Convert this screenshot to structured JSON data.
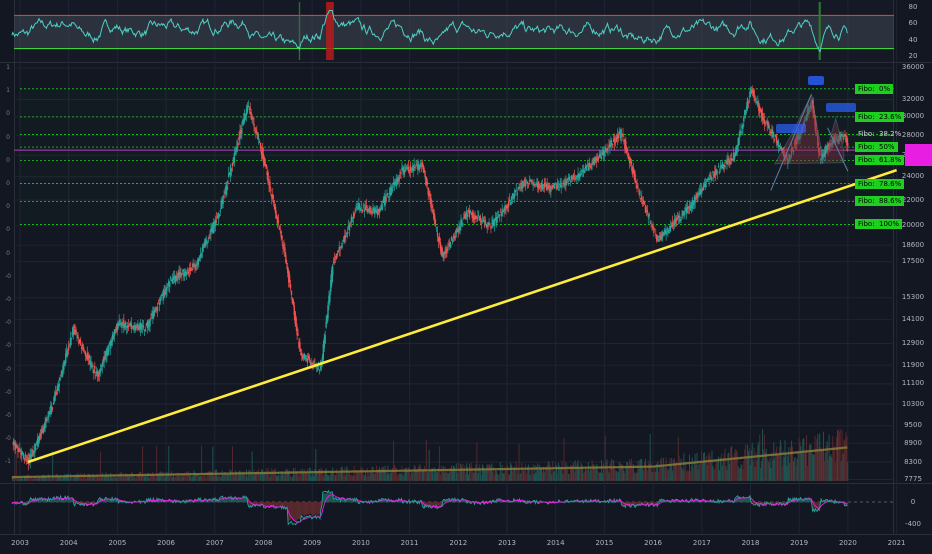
{
  "chart_data": {
    "type": "candlestick",
    "x_axis": {
      "ticks": [
        "2003",
        "2004",
        "2005",
        "2006",
        "2007",
        "2008",
        "2009",
        "2010",
        "2011",
        "2012",
        "2013",
        "2014",
        "2015",
        "2016",
        "2017",
        "2018",
        "2019",
        "2020",
        "2021"
      ]
    },
    "price_axis": {
      "scale": "log",
      "ticks": [
        "36000",
        "32000",
        "30000",
        "28000",
        "26000",
        "24000",
        "22000",
        "20000",
        "18600",
        "17500",
        "15300",
        "14100",
        "12900",
        "11900",
        "11100",
        "10300",
        "9500",
        "8900",
        "8300",
        "7775"
      ]
    },
    "rsi_axis": {
      "ticks": [
        "80",
        "60",
        "40",
        "20"
      ],
      "upper_band": 70,
      "lower_band": 30
    },
    "macd_axis": {
      "ticks": [
        "0",
        "-400"
      ]
    },
    "left_axis_labels": [
      "1",
      "1",
      "0",
      "0",
      "0",
      "0",
      "0",
      "0",
      "0",
      "-0",
      "-0",
      "-0",
      "-0",
      "-0",
      "-0",
      "-0",
      "-0",
      "-1"
    ],
    "price_path": [
      [
        "2002-11",
        8900
      ],
      [
        "2003-03",
        8300
      ],
      [
        "2003-09",
        10300
      ],
      [
        "2004-02",
        13600
      ],
      [
        "2004-08",
        11400
      ],
      [
        "2005-01",
        13900
      ],
      [
        "2005-08",
        13700
      ],
      [
        "2006-02",
        16300
      ],
      [
        "2006-08",
        17200
      ],
      [
        "2007-02",
        21000
      ],
      [
        "2007-09",
        31500
      ],
      [
        "2008-01",
        25500
      ],
      [
        "2008-06",
        18200
      ],
      [
        "2008-10",
        12400
      ],
      [
        "2009-03",
        11700
      ],
      [
        "2009-06",
        17400
      ],
      [
        "2009-12",
        21500
      ],
      [
        "2010-05",
        21000
      ],
      [
        "2010-11",
        24500
      ],
      [
        "2011-04",
        25000
      ],
      [
        "2011-09",
        17800
      ],
      [
        "2012-03",
        21000
      ],
      [
        "2012-09",
        20000
      ],
      [
        "2013-05",
        23500
      ],
      [
        "2013-12",
        23000
      ],
      [
        "2014-06",
        24000
      ],
      [
        "2014-12",
        26000
      ],
      [
        "2015-05",
        28300
      ],
      [
        "2015-10",
        22000
      ],
      [
        "2016-02",
        19000
      ],
      [
        "2016-10",
        21500
      ],
      [
        "2017-03",
        24000
      ],
      [
        "2017-09",
        26000
      ],
      [
        "2018-01",
        33400
      ],
      [
        "2018-04",
        29800
      ],
      [
        "2018-10",
        25500
      ],
      [
        "2019-01",
        28200
      ],
      [
        "2019-04",
        31800
      ],
      [
        "2019-06",
        25500
      ],
      [
        "2019-09",
        27500
      ],
      [
        "2019-12",
        28000
      ],
      [
        "2020-01",
        26800
      ]
    ],
    "trendline": {
      "from": [
        "2003-03",
        8300
      ],
      "to": [
        "2021-01",
        24600
      ],
      "color": "#ffeb3b"
    },
    "fibonacci": [
      {
        "label": "Fibo:  0%",
        "value": 33300
      },
      {
        "label": "Fibo:  23.6%",
        "value": 30000
      },
      {
        "label": "Fibo:  38.2%",
        "value": 28100
      },
      {
        "label": "Fibo:  50%",
        "value": 26800
      },
      {
        "label": "Fibo:  61.8%",
        "value": 25500
      },
      {
        "label": "Fibo:  78.6%",
        "value": 23400
      },
      {
        "label": "Fibo:  88.6%",
        "value": 21900
      },
      {
        "label": "Fibo:  100%",
        "value": 20100
      }
    ],
    "horizontal_line": {
      "value": 26500,
      "color": "#ab47bc"
    },
    "colors": {
      "up": "#26a69a",
      "down": "#ef5350",
      "background": "#131722",
      "grid": "#1f2433",
      "fibo": "#1fcf1f",
      "rsi_line": "#4dd0c4",
      "volume_ma": "#8a7a3a",
      "macd": "#26a69a",
      "signal": "#e91ee3",
      "pattern_fill": "#7a2f3f",
      "marker": "#2962ff",
      "last_price_tag": "#e91ee3"
    }
  }
}
